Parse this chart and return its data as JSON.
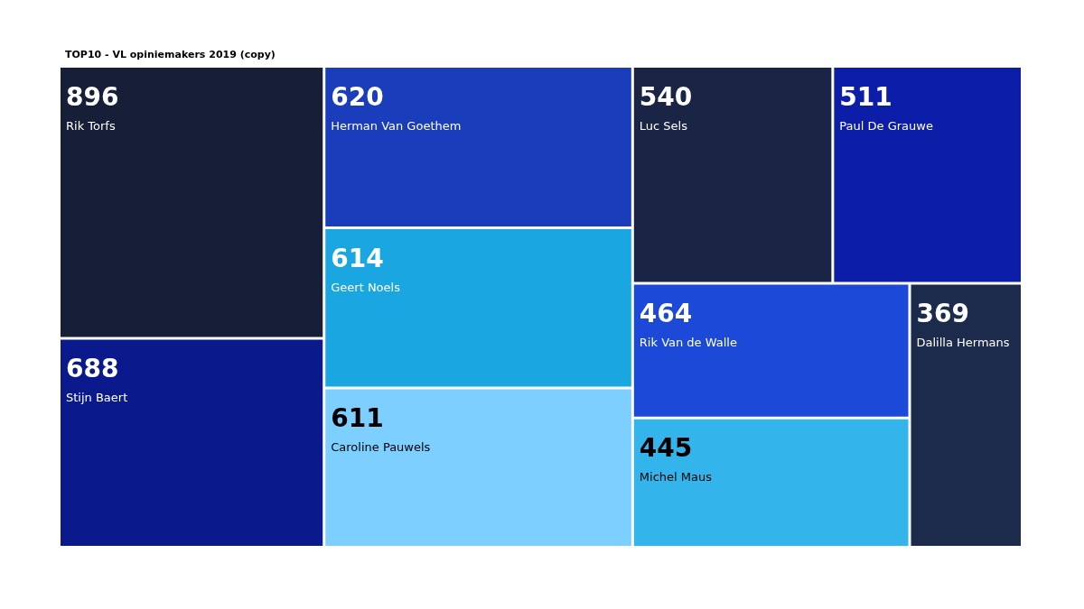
{
  "chart_data": {
    "type": "other",
    "title": "TOP10 - VL opiniemakers 2019 (copy)",
    "categories": [
      "Rik Torfs",
      "Stijn Baert",
      "Herman Van Goethem",
      "Geert Noels",
      "Caroline Pauwels",
      "Luc Sels",
      "Paul De Grauwe",
      "Rik Van de Walle",
      "Michel Maus",
      "Dalilla Hermans"
    ],
    "values": [
      896,
      688,
      620,
      614,
      611,
      540,
      511,
      464,
      445,
      369
    ],
    "colors": [
      "#161e38",
      "#0a1a8c",
      "#1a3dbb",
      "#1aa6e0",
      "#7dcfff",
      "#1a2444",
      "#0c1ea8",
      "#1c49d8",
      "#33b4ea",
      "#1c2a4c"
    ],
    "data_labels": true
  }
}
